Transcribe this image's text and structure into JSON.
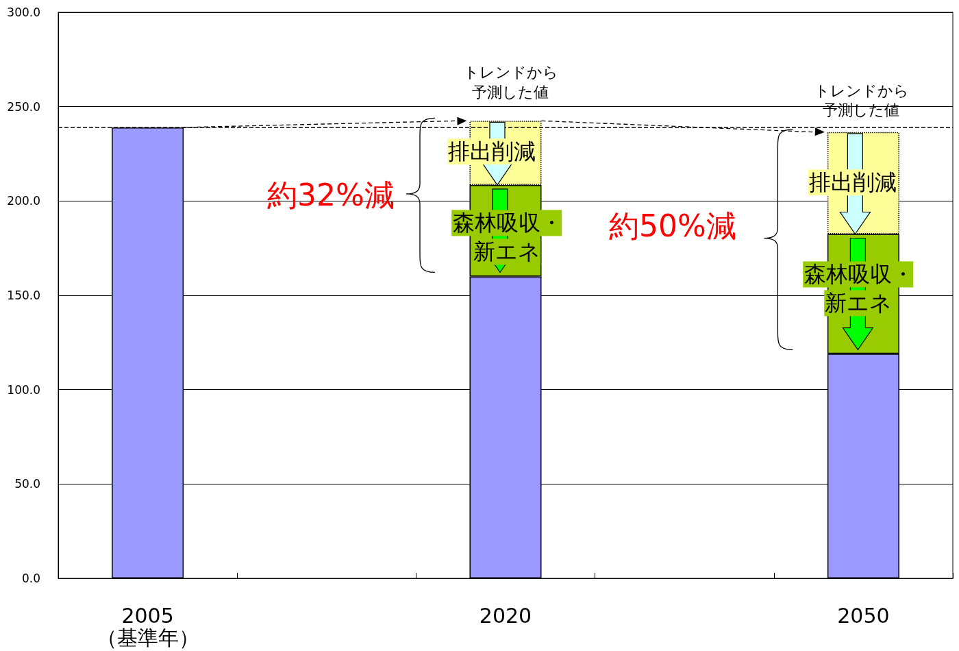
{
  "chart_data": {
    "type": "bar",
    "stacked": true,
    "categories": [
      "2005\n（基準年）",
      null,
      "2020",
      null,
      "2050"
    ],
    "series": [
      {
        "color": "#9999ff",
        "values": [
          239,
          null,
          160,
          null,
          119
        ]
      },
      {
        "color": "#99cc00",
        "values": [
          null,
          null,
          48.5,
          null,
          63.5
        ]
      },
      {
        "color": "#ffff99",
        "values": [
          null,
          null,
          34,
          null,
          54
        ]
      }
    ],
    "ylim": [
      0,
      300
    ],
    "yticks": [
      {
        "value": 0,
        "label": "0.0"
      },
      {
        "value": 50,
        "label": "50.0"
      },
      {
        "value": 100,
        "label": "100.0"
      },
      {
        "value": 150,
        "label": "150.0"
      },
      {
        "value": 200,
        "label": "200.0"
      },
      {
        "value": 250,
        "label": "250.0"
      },
      {
        "value": 300,
        "label": "300.0"
      }
    ],
    "grid": "y",
    "ref_lines": [
      {
        "axis": "y",
        "value": 239,
        "line_style": "dashed",
        "color": "#000000"
      }
    ],
    "annotations": [
      {
        "text": "トレンドから予測した値",
        "x": "2020",
        "y": 242.5
      },
      {
        "text": "排出削減",
        "x": "2020",
        "y": 208.5
      },
      "森林吸収・新エネ",
      {
        "text": "トレンドから予測した値",
        "x": "2050",
        "y": 236.5
      },
      {
        "text": "排出削減",
        "x": "2050",
        "y": 182.5
      },
      "森林吸収・新エネ",
      "約32%減",
      "約50%減"
    ]
  }
}
